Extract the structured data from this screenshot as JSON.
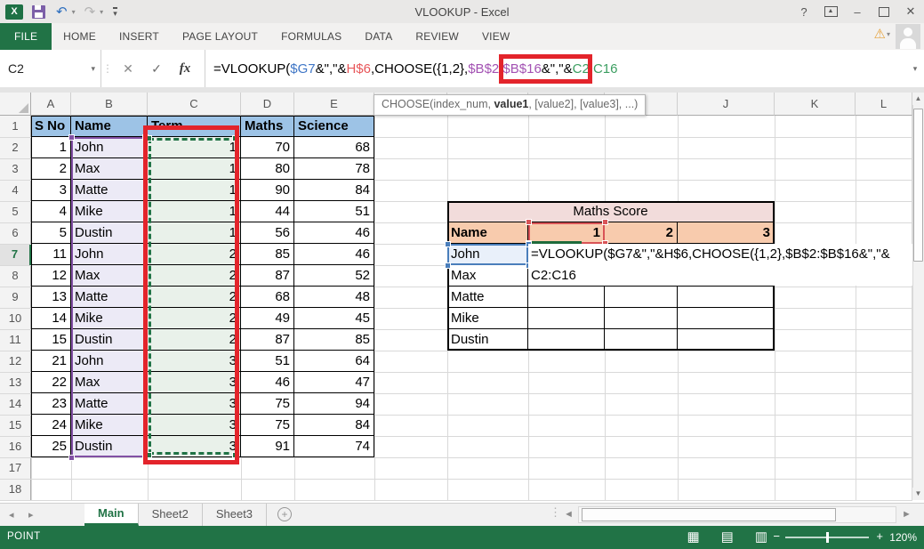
{
  "window": {
    "title": "VLOOKUP - Excel"
  },
  "icons": {
    "excel_logo": "X",
    "undo": "↶",
    "redo": "↷",
    "dropdown": "▾",
    "help": "?",
    "ribbon_display": "▲",
    "minimize": "–",
    "close": "✕",
    "warning": "⚠",
    "cancel": "✕",
    "enter": "✓",
    "insert_function": "fx",
    "dots": "⋮",
    "nav_left": "◂",
    "nav_right": "▸",
    "new_sheet": "+",
    "scroll_up": "▲",
    "scroll_down": "▼",
    "scroll_left": "◄",
    "scroll_right": "►",
    "zoom_out": "−",
    "zoom_in": "+"
  },
  "ribbon": {
    "tabs": [
      {
        "label": "FILE",
        "active": true
      },
      {
        "label": "HOME",
        "active": false
      },
      {
        "label": "INSERT",
        "active": false
      },
      {
        "label": "PAGE LAYOUT",
        "active": false
      },
      {
        "label": "FORMULAS",
        "active": false
      },
      {
        "label": "DATA",
        "active": false
      },
      {
        "label": "REVIEW",
        "active": false
      },
      {
        "label": "VIEW",
        "active": false
      }
    ]
  },
  "formula_bar": {
    "name_box": "C2",
    "segments": [
      {
        "text": "=VLOOKUP(",
        "color": "#000000"
      },
      {
        "text": "$G7",
        "color": "#3F76C6"
      },
      {
        "text": "&\",\"&",
        "color": "#000000"
      },
      {
        "text": "H$6",
        "color": "#E8575A"
      },
      {
        "text": ",CHOOSE({1,2},",
        "color": "#000000"
      },
      {
        "text": "$B$2:$B$16",
        "color": "#A352B3"
      },
      {
        "text": "&\",\"&",
        "color": "#000000"
      },
      {
        "text": "C2:C16",
        "color": "#3C9E61"
      }
    ]
  },
  "function_tooltip": {
    "prefix": "CHOOSE(index_num, ",
    "bold": "value1",
    "suffix": ", [value2], [value3], ...)"
  },
  "grid": {
    "visible_columns": [
      "A",
      "B",
      "C",
      "D",
      "E",
      "F",
      "G",
      "H",
      "I",
      "J",
      "K",
      "L"
    ],
    "visible_rows": 18,
    "cells": {
      "A1": "S No",
      "B1": "Name",
      "C1": "Term",
      "D1": "Maths",
      "E1": "Science",
      "A2": "1",
      "B2": "John",
      "C2": "1",
      "D2": "70",
      "E2": "68",
      "A3": "2",
      "B3": "Max",
      "C3": "1",
      "D3": "80",
      "E3": "78",
      "A4": "3",
      "B4": "Matte",
      "C4": "1",
      "D4": "90",
      "E4": "84",
      "A5": "4",
      "B5": "Mike",
      "C5": "1",
      "D5": "44",
      "E5": "51",
      "A6": "5",
      "B6": "Dustin",
      "C6": "1",
      "D6": "56",
      "E6": "46",
      "A7": "11",
      "B7": "John",
      "C7": "2",
      "D7": "85",
      "E7": "46",
      "A8": "12",
      "B8": "Max",
      "C8": "2",
      "D8": "87",
      "E8": "52",
      "A9": "13",
      "B9": "Matte",
      "C9": "2",
      "D9": "68",
      "E9": "48",
      "A10": "14",
      "B10": "Mike",
      "C10": "2",
      "D10": "49",
      "E10": "45",
      "A11": "15",
      "B11": "Dustin",
      "C11": "2",
      "D11": "87",
      "E11": "85",
      "A12": "21",
      "B12": "John",
      "C12": "3",
      "D12": "51",
      "E12": "64",
      "A13": "22",
      "B13": "Max",
      "C13": "3",
      "D13": "46",
      "E13": "47",
      "A14": "23",
      "B14": "Matte",
      "C14": "3",
      "D14": "75",
      "E14": "94",
      "A15": "24",
      "B15": "Mike",
      "C15": "3",
      "D15": "75",
      "E15": "84",
      "A16": "25",
      "B16": "Dustin",
      "C16": "3",
      "D16": "91",
      "E16": "74",
      "G5": "Maths Score",
      "G6": "Name",
      "H6": "1",
      "I6": "2",
      "J6": "3",
      "G7": "John",
      "G8": "Max",
      "G9": "Matte",
      "G10": "Mike",
      "G11": "Dustin"
    },
    "cell_edit": {
      "line1": "=VLOOKUP($G7&\",\"&H$6,CHOOSE({1,2},$B$2:$B$16&\",\"&",
      "line2": "C2:C16"
    },
    "highlight_colors": {
      "selection_green": "#217346",
      "ref_blue": "#4A7EBB",
      "ref_red": "#D95457",
      "ref_purple": "#8250A4",
      "annotation_red": "#E3242B"
    }
  },
  "sheet_tabs": {
    "tabs": [
      {
        "label": "Main",
        "active": true
      },
      {
        "label": "Sheet2",
        "active": false
      },
      {
        "label": "Sheet3",
        "active": false
      }
    ]
  },
  "status_bar": {
    "mode": "POINT",
    "zoom": "120%",
    "views": [
      {
        "name": "normal-view",
        "glyph": "▦"
      },
      {
        "name": "page-layout-view",
        "glyph": "▤"
      },
      {
        "name": "page-break-preview-view",
        "glyph": "▥"
      }
    ]
  }
}
